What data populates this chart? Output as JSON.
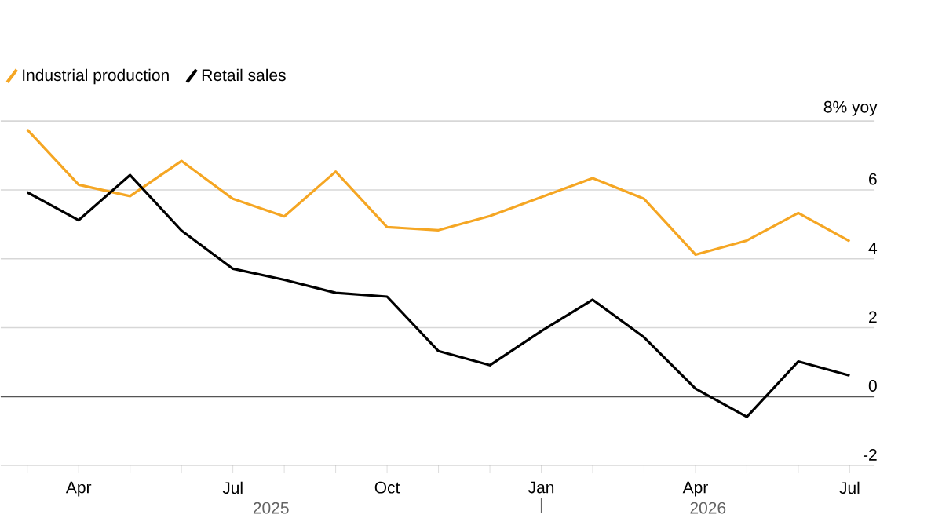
{
  "chart_data": {
    "type": "line",
    "x": [
      "2025-03",
      "2025-04",
      "2025-05",
      "2025-06",
      "2025-07",
      "2025-08",
      "2025-09",
      "2025-10",
      "2025-11",
      "2025-12",
      "2026-01",
      "2026-02",
      "2026-03",
      "2026-04",
      "2026-05",
      "2026-06",
      "2026-07"
    ],
    "series": [
      {
        "name": "Industrial production",
        "color": "#f5a623",
        "values": [
          7.75,
          6.15,
          5.82,
          6.84,
          5.74,
          5.23,
          6.53,
          4.92,
          4.83,
          5.24,
          5.79,
          6.34,
          5.74,
          4.12,
          4.53,
          5.33,
          4.51
        ]
      },
      {
        "name": "Retail sales",
        "color": "#000000",
        "values": [
          5.93,
          5.12,
          6.43,
          4.82,
          3.71,
          3.39,
          3.01,
          2.9,
          1.32,
          0.91,
          1.9,
          2.81,
          1.72,
          0.23,
          -0.59,
          1.02,
          0.61
        ]
      }
    ],
    "xlim": [
      "2025-02-16",
      "2026-07-16"
    ],
    "xticks": [
      {
        "value": "2025-03",
        "label": null
      },
      {
        "value": "2025-04",
        "label": "Apr"
      },
      {
        "value": "2025-05",
        "label": null
      },
      {
        "value": "2025-06",
        "label": null
      },
      {
        "value": "2025-07",
        "label": "Jul"
      },
      {
        "value": "2025-08",
        "label": null
      },
      {
        "value": "2025-09",
        "label": null
      },
      {
        "value": "2025-10",
        "label": "Oct"
      },
      {
        "value": "2025-11",
        "label": null
      },
      {
        "value": "2025-12",
        "label": null
      },
      {
        "value": "2026-01",
        "label": "Jan"
      },
      {
        "value": "2026-02",
        "label": null
      },
      {
        "value": "2026-03",
        "label": null
      },
      {
        "value": "2026-04",
        "label": "Apr"
      },
      {
        "value": "2026-05",
        "label": null
      },
      {
        "value": "2026-06",
        "label": null
      },
      {
        "value": "2026-07",
        "label": "Jul"
      }
    ],
    "ylim": [
      -2,
      8
    ],
    "yticks": [
      -2,
      0,
      2,
      4,
      6,
      {
        "value": 8,
        "label": "8% yoy"
      }
    ],
    "annotations": [
      "2025",
      "2026"
    ],
    "ref_lines": [
      {
        "axis": "y",
        "value": 0,
        "color": "#555555"
      }
    ],
    "grid": "y",
    "legend": "top left",
    "marker": "none",
    "line_style": "solid"
  }
}
